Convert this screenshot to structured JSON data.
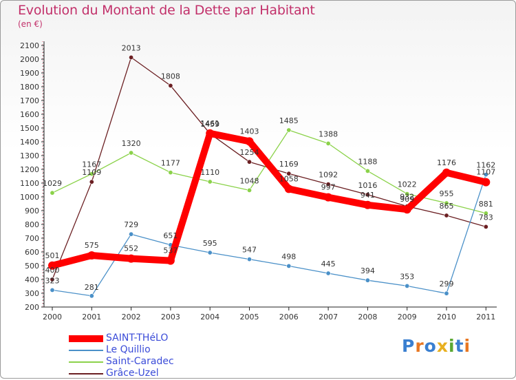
{
  "chart_data": {
    "type": "line",
    "title": "Evolution du Montant de la Dette par Habitant",
    "subtitle": "(en €)",
    "x": [
      "2000",
      "2001",
      "2002",
      "2003",
      "2004",
      "2005",
      "2006",
      "2007",
      "2008",
      "2009",
      "2010",
      "2011"
    ],
    "yticks": [
      200,
      300,
      400,
      500,
      600,
      700,
      800,
      900,
      1000,
      1100,
      1200,
      1300,
      1400,
      1500,
      1600,
      1700,
      1800,
      1900,
      2000,
      2100
    ],
    "ylim": [
      200,
      2100
    ],
    "grid": false,
    "legend_position": "bottom-left",
    "series": [
      {
        "name": "SAINT-THéLO",
        "color": "#ff0000",
        "values": [
          501,
          575,
          552,
          537,
          1461,
          1403,
          1058,
          997,
          941,
          909,
          1176,
          1107
        ],
        "labels": [
          "501",
          "575",
          "552",
          "537",
          "1461",
          "1403",
          "1058",
          "997",
          "941",
          "909",
          "1176",
          "1107"
        ]
      },
      {
        "name": "Le Quillio",
        "color": "#4a90c8",
        "values": [
          323,
          281,
          729,
          651,
          595,
          547,
          498,
          445,
          394,
          353,
          299,
          1162
        ],
        "labels": [
          "323",
          "281",
          "729",
          "651",
          "595",
          "547",
          "498",
          "445",
          "394",
          "353",
          "299",
          "1162"
        ]
      },
      {
        "name": "Saint-Caradec",
        "color": "#8bd24a",
        "values": [
          1029,
          1167,
          1320,
          1177,
          1110,
          1048,
          1485,
          1388,
          1188,
          1022,
          955,
          881
        ],
        "labels": [
          "1029",
          "1167",
          "1320",
          "1177",
          "1110",
          "1048",
          "1485",
          "1388",
          "1188",
          "1022",
          "955",
          "881"
        ]
      },
      {
        "name": "Grâce-Uzel",
        "color": "#6b1f22",
        "values": [
          400,
          1109,
          2013,
          1808,
          1459,
          1254,
          1169,
          1092,
          1016,
          932,
          865,
          783
        ],
        "labels": [
          "400",
          "1109",
          "2013",
          "1808",
          "1459",
          "1254",
          "1169",
          "1092",
          "1016",
          "932",
          "865",
          "783"
        ]
      }
    ]
  },
  "logo": {
    "text": "Proxiti",
    "letters": [
      "P",
      "r",
      "o",
      "x",
      "i",
      "t",
      "i"
    ],
    "colors": [
      "#3a7fd0",
      "#e87722",
      "#3a7fd0",
      "#e8b020",
      "#5aa832",
      "#3a7fd0",
      "#e87722"
    ]
  }
}
